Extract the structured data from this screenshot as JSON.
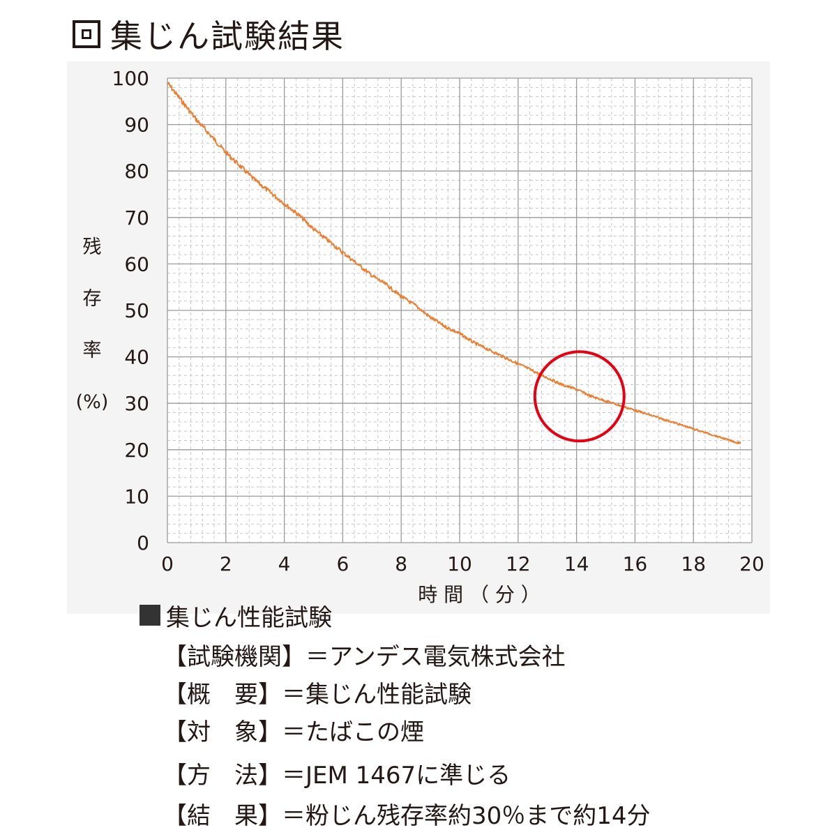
{
  "title": "集じん試験結果",
  "chart_data": {
    "type": "line",
    "xlabel": "時 間 （ 分 ）",
    "ylabel_chars": [
      "残",
      "存",
      "率",
      "(%)"
    ],
    "xlim": [
      0,
      20
    ],
    "ylim": [
      0,
      100
    ],
    "x_ticks": [
      "0",
      "2",
      "4",
      "6",
      "8",
      "10",
      "12",
      "14",
      "16",
      "18",
      "20"
    ],
    "y_ticks": [
      "0",
      "10",
      "20",
      "30",
      "40",
      "50",
      "60",
      "70",
      "80",
      "90",
      "100"
    ],
    "grid": true,
    "series": [
      {
        "color": "#ed7d31",
        "x": [
          0,
          0.5,
          1,
          1.5,
          2,
          2.5,
          3,
          3.5,
          4,
          4.5,
          5,
          5.5,
          6,
          6.5,
          7,
          7.5,
          8,
          8.5,
          9,
          9.5,
          10,
          10.5,
          11,
          11.5,
          12,
          12.5,
          13,
          13.5,
          14,
          14.5,
          15,
          15.5,
          16,
          16.5,
          17,
          17.5,
          18,
          18.5,
          19,
          19.5,
          19.6
        ],
        "values": [
          99,
          95,
          91,
          87.5,
          84,
          81,
          78,
          75.5,
          73,
          70.5,
          67.5,
          65,
          62.5,
          60,
          57.5,
          55.5,
          53,
          51,
          48.5,
          46.5,
          45,
          43,
          41.5,
          40,
          38.5,
          37,
          35.5,
          34,
          33,
          31.5,
          30.5,
          29.5,
          28.5,
          27.5,
          26.5,
          25.5,
          24.5,
          23.5,
          22.5,
          21.5,
          21.5
        ]
      }
    ],
    "highlight": {
      "x": 14.1,
      "y": 31.5,
      "color": "#e60012"
    }
  },
  "info": {
    "heading": "集じん性能試験",
    "lines": [
      "【試験機関】＝アンデス電気株式会社",
      "【概　要】＝集じん性能試験",
      "【対　象】＝たばこの煙",
      "【方　法】＝JEM 1467に準じる",
      "【結　果】＝粉じん残存率約30％まで約14分"
    ]
  }
}
